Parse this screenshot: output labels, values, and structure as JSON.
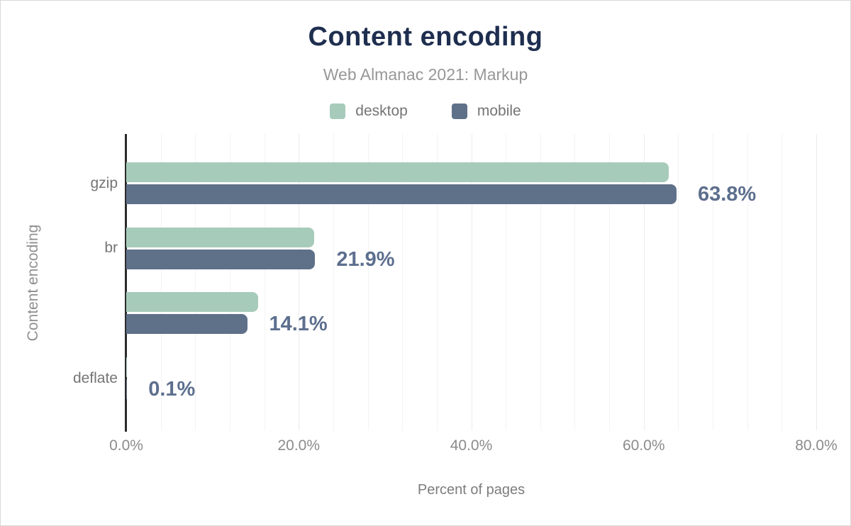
{
  "chart_data": {
    "type": "bar",
    "orientation": "horizontal",
    "title": "Content encoding",
    "subtitle": "Web Almanac 2021: Markup",
    "categories": [
      "gzip",
      "br",
      "",
      "deflate"
    ],
    "series": [
      {
        "name": "desktop",
        "color": "#a7cbba",
        "values": [
          62.9,
          21.8,
          15.3,
          0.1
        ]
      },
      {
        "name": "mobile",
        "color": "#5f7089",
        "values": [
          63.8,
          21.9,
          14.1,
          0.1
        ]
      }
    ],
    "bar_labels": [
      "63.8%",
      "21.9%",
      "14.1%",
      "0.1%"
    ],
    "xlabel": "Percent of pages",
    "ylabel": "Content encoding",
    "xlim": [
      0,
      80
    ],
    "xticks": [
      "0.0%",
      "20.0%",
      "40.0%",
      "60.0%",
      "80.0%"
    ],
    "xtick_values": [
      0,
      20,
      40,
      60,
      80
    ],
    "grid": true,
    "gridline_step_pct": 4,
    "legend_position": "top",
    "colors": {
      "title": "#1e2e4f",
      "subtitle": "#979797",
      "value_label": "#5d6f8e",
      "axis_line": "#2b2b2b"
    }
  }
}
